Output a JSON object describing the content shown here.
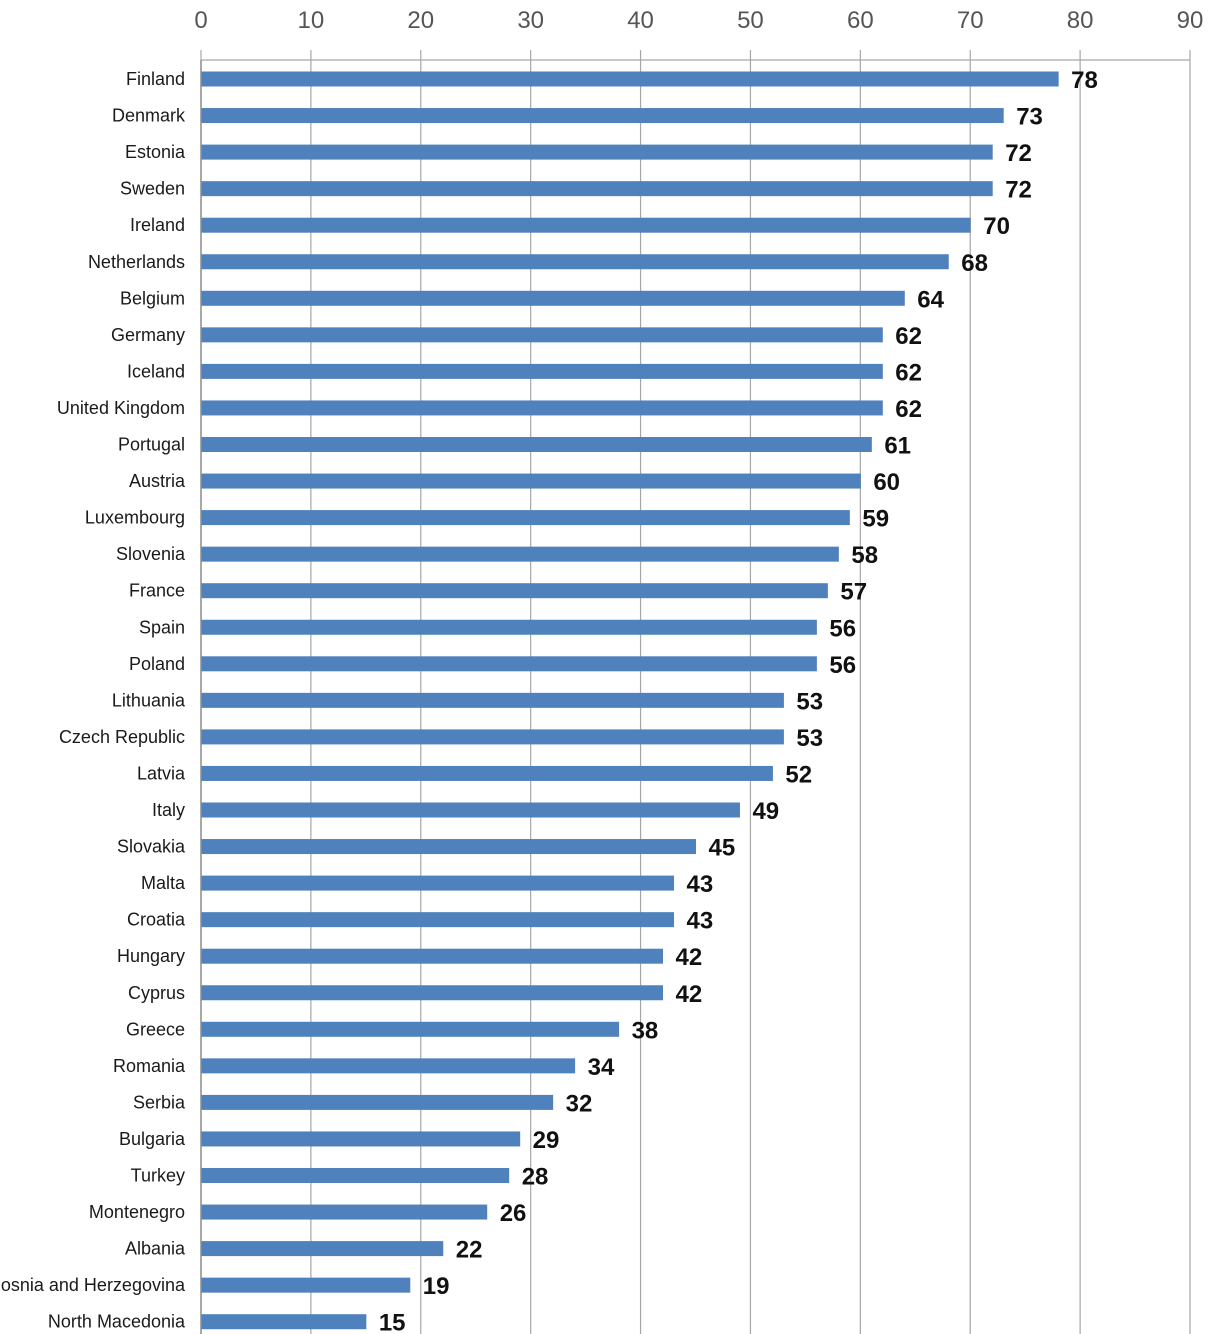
{
  "chart_data": {
    "type": "bar",
    "orientation": "horizontal",
    "title": "",
    "xlabel": "",
    "ylabel": "",
    "xlim": [
      0,
      90
    ],
    "x_ticks": [
      0,
      10,
      20,
      30,
      40,
      50,
      60,
      70,
      80,
      90
    ],
    "x_axis_position": "top",
    "grid": true,
    "bar_color": "#4f81bd",
    "categories": [
      "Finland",
      "Denmark",
      "Estonia",
      "Sweden",
      "Ireland",
      "Netherlands",
      "Belgium",
      "Germany",
      "Iceland",
      "United Kingdom",
      "Portugal",
      "Austria",
      "Luxembourg",
      "Slovenia",
      "France",
      "Spain",
      "Poland",
      "Lithuania",
      "Czech Republic",
      "Latvia",
      "Italy",
      "Slovakia",
      "Malta",
      "Croatia",
      "Hungary",
      "Cyprus",
      "Greece",
      "Romania",
      "Serbia",
      "Bulgaria",
      "Turkey",
      "Montenegro",
      "Albania",
      "Bosnia and Herzegovina",
      "North Macedonia"
    ],
    "values": [
      78,
      73,
      72,
      72,
      70,
      68,
      64,
      62,
      62,
      62,
      61,
      60,
      59,
      58,
      57,
      56,
      56,
      53,
      53,
      52,
      49,
      45,
      43,
      43,
      42,
      42,
      38,
      34,
      32,
      29,
      28,
      26,
      22,
      19,
      15
    ]
  }
}
